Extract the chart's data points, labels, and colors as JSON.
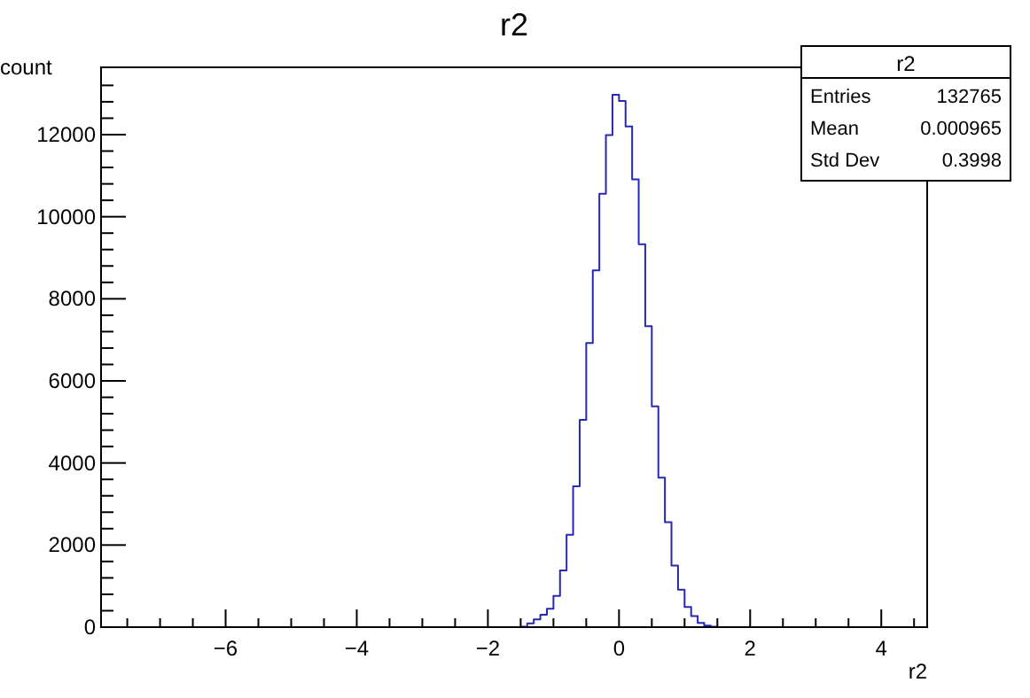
{
  "chart_data": {
    "type": "histogram",
    "title": "r2",
    "xlabel": "r2",
    "ylabel": "count",
    "color": "#2828b4",
    "bins": [
      -1.5,
      -1.4,
      -1.3,
      -1.2,
      -1.1,
      -1.0,
      -0.9,
      -0.8,
      -0.7,
      -0.6,
      -0.5,
      -0.4,
      -0.3,
      -0.2,
      -0.1,
      0,
      0.1,
      0.2,
      0.3,
      0.4,
      0.5,
      0.6,
      0.7,
      0.8,
      0.9,
      1.0,
      1.1,
      1.2,
      1.3,
      1.4,
      1.5
    ],
    "values": [
      10,
      90,
      190,
      300,
      450,
      760,
      1380,
      2250,
      3430,
      5050,
      6920,
      8690,
      10560,
      11990,
      12970,
      12820,
      12200,
      10910,
      9330,
      7330,
      5380,
      3640,
      2560,
      1500,
      910,
      490,
      270,
      100,
      40,
      10
    ],
    "xlim": [
      -7.9,
      4.7
    ],
    "xticks": [
      {
        "value": -7.5,
        "label": null
      },
      {
        "value": -7,
        "label": null
      },
      {
        "value": -6.5,
        "label": null
      },
      -6,
      {
        "value": -5.5,
        "label": null
      },
      {
        "value": -5,
        "label": null
      },
      {
        "value": -4.5,
        "label": null
      },
      -4,
      {
        "value": -3.5,
        "label": null
      },
      {
        "value": -3,
        "label": null
      },
      {
        "value": -2.5,
        "label": null
      },
      -2,
      {
        "value": -1.5,
        "label": null
      },
      {
        "value": -1,
        "label": null
      },
      {
        "value": -0.5,
        "label": null
      },
      0,
      {
        "value": 0.5,
        "label": null
      },
      {
        "value": 1,
        "label": null
      },
      {
        "value": 1.5,
        "label": null
      },
      2,
      {
        "value": 2.5,
        "label": null
      },
      {
        "value": 3,
        "label": null
      },
      {
        "value": 3.5,
        "label": null
      },
      4,
      {
        "value": 4.5,
        "label": null
      }
    ],
    "ylim": [
      0,
      13640
    ],
    "yticks": [
      0,
      {
        "value": 400,
        "label": null
      },
      {
        "value": 800,
        "label": null
      },
      {
        "value": 1200,
        "label": null
      },
      {
        "value": 1600,
        "label": null
      },
      2000,
      {
        "value": 2400,
        "label": null
      },
      {
        "value": 2800,
        "label": null
      },
      {
        "value": 3200,
        "label": null
      },
      {
        "value": 3600,
        "label": null
      },
      4000,
      {
        "value": 4400,
        "label": null
      },
      {
        "value": 4800,
        "label": null
      },
      {
        "value": 5200,
        "label": null
      },
      {
        "value": 5600,
        "label": null
      },
      6000,
      {
        "value": 6400,
        "label": null
      },
      {
        "value": 6800,
        "label": null
      },
      {
        "value": 7200,
        "label": null
      },
      {
        "value": 7600,
        "label": null
      },
      8000,
      {
        "value": 8400,
        "label": null
      },
      {
        "value": 8800,
        "label": null
      },
      {
        "value": 9200,
        "label": null
      },
      {
        "value": 9600,
        "label": null
      },
      10000,
      {
        "value": 10400,
        "label": null
      },
      {
        "value": 10800,
        "label": null
      },
      {
        "value": 11200,
        "label": null
      },
      {
        "value": 11600,
        "label": null
      },
      12000,
      {
        "value": 12400,
        "label": null
      },
      {
        "value": 12800,
        "label": null
      },
      {
        "value": 13200,
        "label": null
      }
    ],
    "annotations": [
      "r2",
      "Entries",
      "132765",
      "Mean",
      "0.000965",
      "Std Dev",
      "0.3998"
    ]
  }
}
